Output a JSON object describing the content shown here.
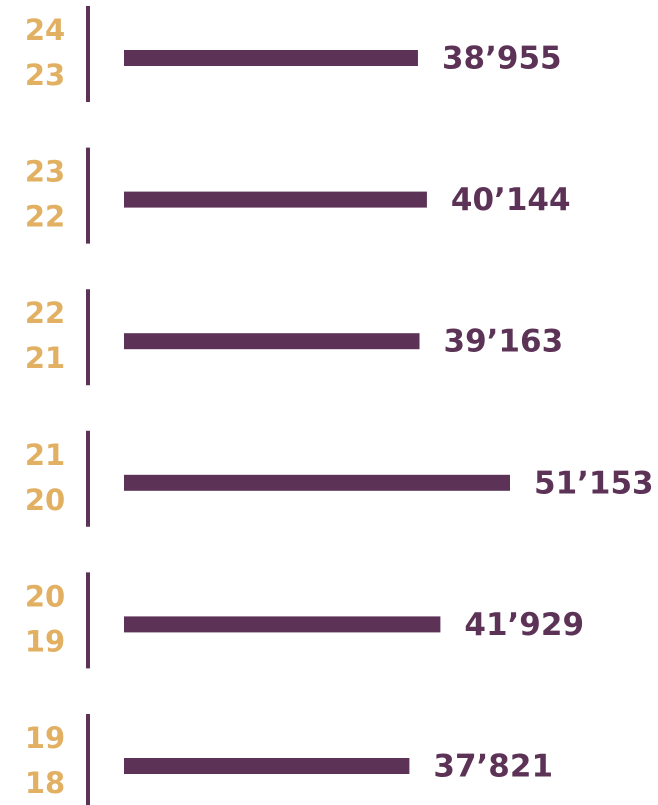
{
  "chart_data": {
    "type": "bar",
    "orientation": "horizontal",
    "categories": [
      [
        "24",
        "23"
      ],
      [
        "23",
        "22"
      ],
      [
        "22",
        "21"
      ],
      [
        "21",
        "20"
      ],
      [
        "20",
        "19"
      ],
      [
        "19",
        "18"
      ]
    ],
    "values": [
      38955,
      40144,
      39163,
      51153,
      41929,
      37821
    ],
    "value_labels": [
      "38’955",
      "40’144",
      "39’163",
      "51’153",
      "41’929",
      "37’821"
    ],
    "color": "#5c3356",
    "category_color": "#e2b062"
  }
}
